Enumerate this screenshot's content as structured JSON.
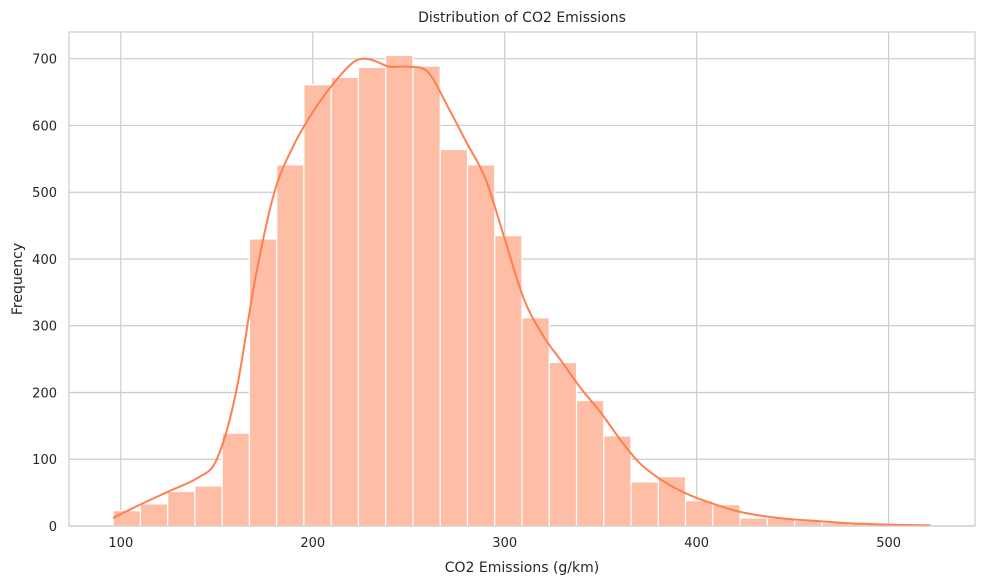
{
  "chart_data": {
    "type": "bar",
    "title": "Distribution of CO2 Emissions",
    "xlabel": "CO2 Emissions (g/km)",
    "ylabel": "Frequency",
    "xlim": [
      73,
      545
    ],
    "ylim": [
      0,
      740
    ],
    "xticks": [
      100,
      200,
      300,
      400,
      500
    ],
    "yticks": [
      0,
      100,
      200,
      300,
      400,
      500,
      600,
      700
    ],
    "grid": true,
    "colors": {
      "bar": "#fdbea5",
      "kde": "#ff7f50",
      "grid": "#cccccc",
      "spine": "#cccccc"
    },
    "bins": {
      "edges": [
        96,
        110.2,
        124.4,
        138.6,
        152.8,
        167,
        181.2,
        195.4,
        209.6,
        223.8,
        238,
        252.2,
        266.4,
        280.6,
        294.8,
        309,
        323.2,
        337.4,
        351.6,
        365.8,
        380,
        394.2,
        408.4,
        422.6,
        436.8,
        451,
        465.2,
        479.4,
        493.6,
        507.8,
        522
      ],
      "values": [
        23,
        33,
        52,
        60,
        139,
        430,
        541,
        661,
        672,
        687,
        705,
        689,
        564,
        541,
        435,
        312,
        245,
        188,
        135,
        66,
        74,
        38,
        32,
        12,
        12,
        8,
        5,
        3,
        3,
        3
      ]
    },
    "kde": {
      "x": [
        96,
        110,
        125,
        140,
        150,
        160,
        170,
        180,
        190,
        200,
        210,
        220,
        226,
        232,
        240,
        250,
        260,
        270,
        280,
        290,
        300,
        310,
        320,
        330,
        340,
        350,
        360,
        370,
        380,
        390,
        400,
        410,
        420,
        430,
        440,
        450,
        460,
        470,
        480,
        490,
        500,
        510,
        522
      ],
      "y": [
        12,
        32,
        52,
        72,
        100,
        200,
        370,
        500,
        570,
        620,
        660,
        692,
        700,
        697,
        688,
        688,
        680,
        630,
        575,
        520,
        430,
        340,
        285,
        245,
        205,
        170,
        130,
        95,
        72,
        55,
        42,
        32,
        23,
        17,
        13,
        10,
        8,
        6,
        4,
        3,
        2,
        1.5,
        1
      ]
    }
  }
}
